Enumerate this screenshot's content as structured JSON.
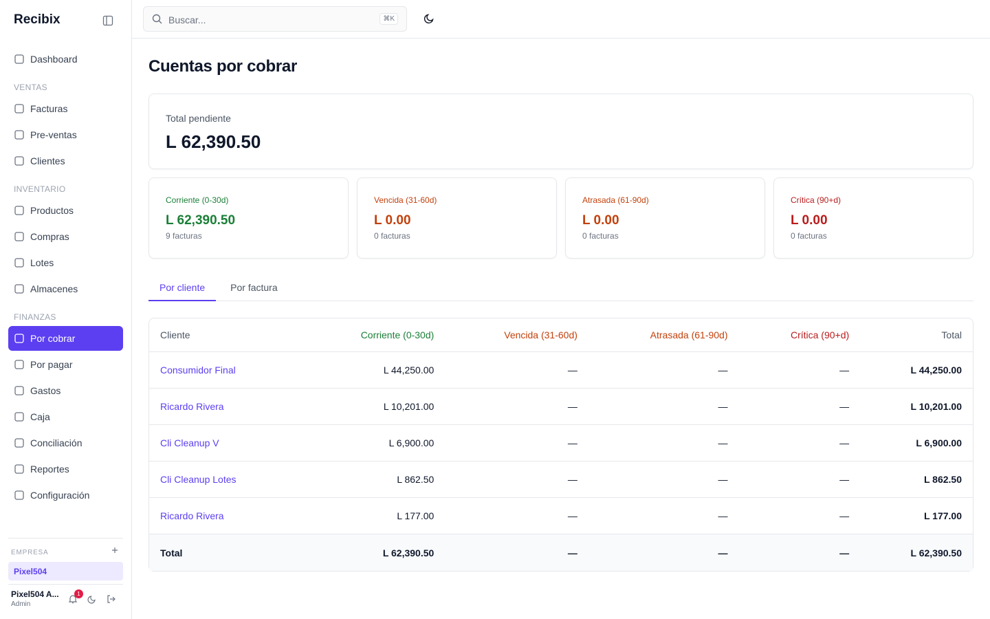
{
  "sidebar": {
    "brand": "Recibix",
    "groups": [
      {
        "items": [
          {
            "label": "Dashboard"
          }
        ]
      },
      {
        "title": "VENTAS",
        "items": [
          {
            "label": "Facturas"
          },
          {
            "label": "Pre-ventas"
          },
          {
            "label": "Clientes"
          }
        ]
      },
      {
        "title": "INVENTARIO",
        "items": [
          {
            "label": "Productos"
          },
          {
            "label": "Compras"
          },
          {
            "label": "Lotes"
          },
          {
            "label": "Almacenes"
          }
        ]
      },
      {
        "title": "FINANZAS",
        "items": [
          {
            "label": "Por cobrar",
            "active": true
          },
          {
            "label": "Por pagar"
          },
          {
            "label": "Gastos"
          },
          {
            "label": "Caja"
          },
          {
            "label": "Conciliación"
          },
          {
            "label": "Reportes"
          },
          {
            "label": "Configuración"
          }
        ]
      }
    ],
    "company": {
      "title": "EMPRESA",
      "name": "Pixel504"
    },
    "user": {
      "name": "Pixel504 A...",
      "role": "Admin",
      "notifications": "1"
    }
  },
  "topbar": {
    "search_placeholder": "Buscar...",
    "shortcut": "⌘K"
  },
  "main": {
    "title": "Cuentas por cobrar",
    "summary": {
      "label": "Total pendiente",
      "value": "L 62,390.50"
    },
    "cards": [
      {
        "label": "Corriente (0-30d)",
        "amount": "L 62,390.50",
        "count": "9 facturas"
      },
      {
        "label": "Vencida (31-60d)",
        "amount": "L 0.00",
        "count": "0 facturas"
      },
      {
        "label": "Atrasada (61-90d)",
        "amount": "L 0.00",
        "count": "0 facturas"
      },
      {
        "label": "Crítica (90+d)",
        "amount": "L 0.00",
        "count": "0 facturas"
      }
    ],
    "tabs": [
      {
        "label": "Por cliente",
        "active": true
      },
      {
        "label": "Por factura"
      }
    ],
    "table": {
      "headers": [
        "Cliente",
        "Corriente (0-30d)",
        "Vencida (31-60d)",
        "Atrasada (61-90d)",
        "Crítica (90+d)",
        "Total"
      ],
      "rows": [
        [
          "Consumidor Final",
          "L 44,250.00",
          "—",
          "—",
          "—",
          "L 44,250.00"
        ],
        [
          "Ricardo Rivera",
          "L 10,201.00",
          "—",
          "—",
          "—",
          "L 10,201.00"
        ],
        [
          "Cli Cleanup V",
          "L 6,900.00",
          "—",
          "—",
          "—",
          "L 6,900.00"
        ],
        [
          "Cli Cleanup Lotes",
          "L 862.50",
          "—",
          "—",
          "—",
          "L 862.50"
        ],
        [
          "Ricardo Rivera",
          "L 177.00",
          "—",
          "—",
          "—",
          "L 177.00"
        ]
      ],
      "total": [
        "Total",
        "L 62,390.50",
        "—",
        "—",
        "—",
        "L 62,390.50"
      ]
    }
  }
}
